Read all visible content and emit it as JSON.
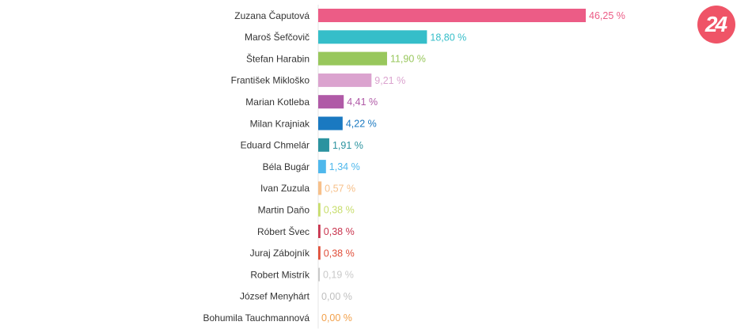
{
  "logo": {
    "text": "24",
    "color": "#ef5467"
  },
  "chart_data": {
    "type": "bar",
    "orientation": "horizontal",
    "title": "",
    "xlabel": "",
    "ylabel": "",
    "xlim": [
      0,
      46.25
    ],
    "grid": false,
    "categories": [
      "Zuzana Čaputová",
      "Maroš Šefčovič",
      "Štefan Harabin",
      "František Mikloško",
      "Marian Kotleba",
      "Milan Krajniak",
      "Eduard Chmelár",
      "Béla Bugár",
      "Ivan Zuzula",
      "Martin Daňo",
      "Róbert Švec",
      "Juraj Zábojník",
      "Robert Mistrík",
      "József Menyhárt",
      "Bohumila Tauchmannová"
    ],
    "values": [
      46.25,
      18.8,
      11.9,
      9.21,
      4.41,
      4.22,
      1.91,
      1.34,
      0.57,
      0.38,
      0.38,
      0.38,
      0.19,
      0.0,
      0.0
    ],
    "value_labels": [
      "46,25 %",
      "18,80 %",
      "11,90 %",
      "9,21 %",
      "4,41 %",
      "4,22 %",
      "1,91 %",
      "1,34 %",
      "0,57 %",
      "0,38 %",
      "0,38 %",
      "0,38 %",
      "0,19 %",
      "0,00 %",
      "0,00 %"
    ],
    "colors": [
      "#ec5c86",
      "#35bec9",
      "#98c75c",
      "#dba3cf",
      "#b05aa7",
      "#1a79c1",
      "#2b939f",
      "#4fb8ec",
      "#f7c08a",
      "#c7dd6b",
      "#c9344e",
      "#e04f3b",
      "#c9c9c9",
      "#bfbfbf",
      "#f2a04a"
    ]
  }
}
